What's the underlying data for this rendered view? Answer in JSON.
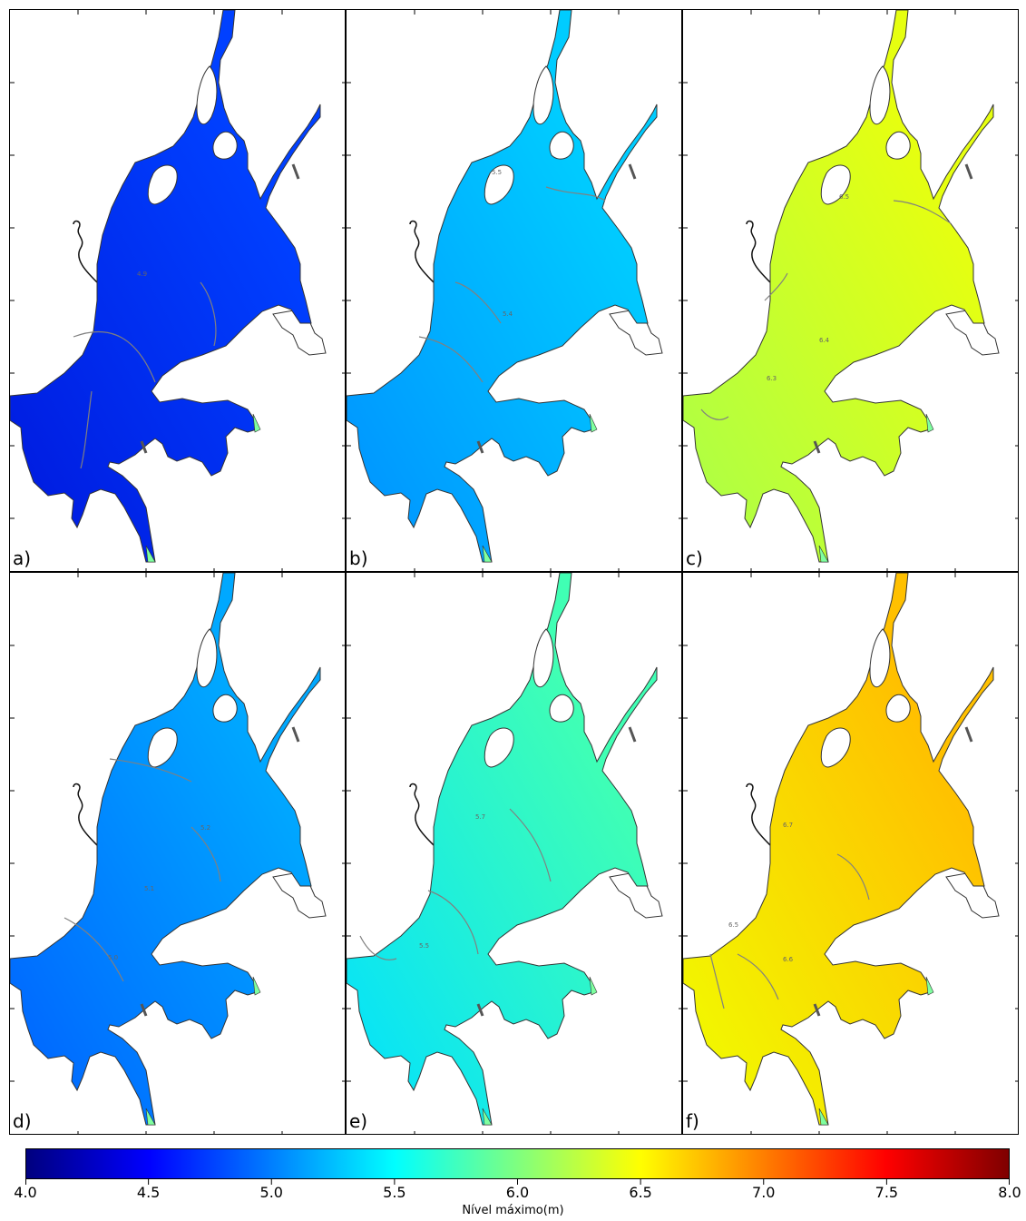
{
  "panels": [
    {
      "label": "a)",
      "fill": "#0040ff",
      "fill_deep": "#0018dd",
      "contours": [
        {
          "text": "4.9"
        }
      ]
    },
    {
      "label": "b)",
      "fill": "#00ccff",
      "fill_deep": "#0090ff",
      "contours": [
        {
          "text": "5.5"
        },
        {
          "text": "5.4"
        }
      ]
    },
    {
      "label": "c)",
      "fill": "#e6ff10",
      "fill_deep": "#a8ff4a",
      "contours": [
        {
          "text": "6.5"
        },
        {
          "text": "6.4"
        },
        {
          "text": "6.3"
        }
      ]
    },
    {
      "label": "d)",
      "fill": "#00a8ff",
      "fill_deep": "#0060ff",
      "contours": [
        {
          "text": "5.2"
        },
        {
          "text": "5.1"
        },
        {
          "text": "5.0"
        }
      ]
    },
    {
      "label": "e)",
      "fill": "#40ffb4",
      "fill_deep": "#00e0ff",
      "contours": [
        {
          "text": "5.7"
        },
        {
          "text": "5.5"
        }
      ]
    },
    {
      "label": "f)",
      "fill": "#ffc000",
      "fill_deep": "#f0ff00",
      "contours": [
        {
          "text": "6.7"
        },
        {
          "text": "6.5"
        },
        {
          "text": "6.6"
        }
      ]
    }
  ],
  "colorbar": {
    "title": "Nível máximo(m)",
    "ticks": [
      "4.0",
      "4.5",
      "5.0",
      "5.5",
      "6.0",
      "6.5",
      "7.0",
      "7.5",
      "8.0"
    ],
    "range": [
      4.0,
      8.0
    ],
    "colormap": [
      "#00007f",
      "#0000ff",
      "#007fff",
      "#00ffff",
      "#7fff7f",
      "#ffff00",
      "#ff7f00",
      "#ff0000",
      "#7f0000"
    ]
  }
}
